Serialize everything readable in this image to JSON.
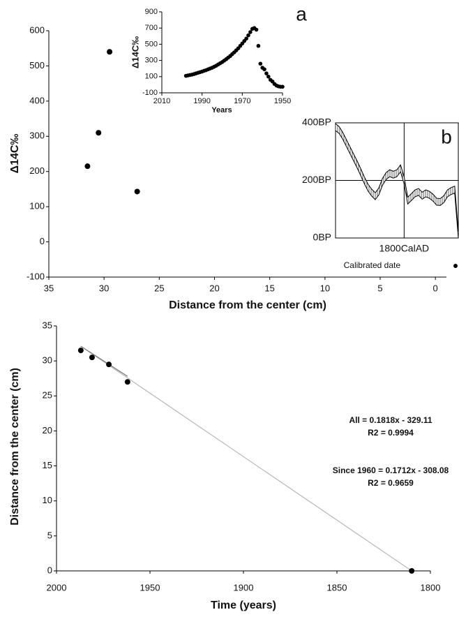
{
  "chart_data": [
    {
      "type": "scatter",
      "x_label": "Distance from the center (cm)",
      "y_label": "Δ14C‰",
      "x": [
        31.5,
        30.5,
        29.5,
        27
      ],
      "values": [
        215,
        310,
        540,
        143
      ],
      "color": "#000000",
      "xlim": [
        35,
        -1
      ],
      "xticks": [
        35,
        30,
        25,
        20,
        15,
        10,
        5,
        0
      ],
      "ylim": [
        -100,
        600
      ],
      "yticks": [
        -100,
        0,
        100,
        200,
        300,
        400,
        500,
        600
      ]
    },
    {
      "type": "scatter",
      "x_label": "Years",
      "y_label": "Δ14C‰",
      "annotations": [
        "a"
      ],
      "x": [
        1998,
        1997,
        1996,
        1995,
        1994,
        1993,
        1992,
        1991,
        1990,
        1989,
        1988,
        1987,
        1986,
        1985,
        1984,
        1983,
        1982,
        1981,
        1980,
        1979,
        1978,
        1977,
        1976,
        1975,
        1974,
        1973,
        1972,
        1971,
        1970,
        1969,
        1968,
        1967,
        1966,
        1965,
        1964,
        1963,
        1962,
        1961,
        1960,
        1959,
        1958,
        1957,
        1956,
        1955,
        1954,
        1953,
        1952,
        1951,
        1950
      ],
      "values": [
        110,
        115,
        120,
        125,
        132,
        140,
        148,
        155,
        163,
        172,
        180,
        190,
        200,
        210,
        222,
        235,
        250,
        265,
        280,
        298,
        315,
        335,
        355,
        378,
        400,
        425,
        450,
        480,
        510,
        540,
        570,
        610,
        650,
        690,
        700,
        680,
        480,
        260,
        210,
        190,
        140,
        100,
        60,
        40,
        10,
        -10,
        -20,
        -25,
        -25
      ],
      "color": "#000000",
      "xlim": [
        2010,
        1950
      ],
      "xticks": [
        2010,
        1990,
        1970,
        1950
      ],
      "ylim": [
        -100,
        900
      ],
      "yticks": [
        -100,
        100,
        300,
        500,
        700,
        900
      ]
    },
    {
      "type": "band",
      "annotations": [
        "b"
      ],
      "legend": [
        "Calibrated date"
      ],
      "grid": true,
      "x": [
        1610,
        1620,
        1630,
        1640,
        1650,
        1660,
        1670,
        1680,
        1690,
        1700,
        1710,
        1720,
        1730,
        1740,
        1750,
        1760,
        1770,
        1780,
        1790,
        1800,
        1810,
        1820,
        1830,
        1840,
        1850,
        1860,
        1870,
        1880,
        1890,
        1900,
        1910,
        1920,
        1930,
        1940,
        1950
      ],
      "high": [
        397,
        387,
        367,
        342,
        317,
        292,
        267,
        240,
        212,
        187,
        170,
        157,
        174,
        207,
        227,
        237,
        232,
        237,
        254,
        212,
        142,
        154,
        167,
        172,
        159,
        167,
        162,
        152,
        138,
        137,
        147,
        167,
        175,
        180,
        22
      ],
      "low": [
        373,
        363,
        343,
        318,
        293,
        268,
        243,
        216,
        188,
        163,
        146,
        133,
        150,
        183,
        203,
        213,
        208,
        213,
        230,
        188,
        118,
        130,
        143,
        148,
        135,
        143,
        138,
        128,
        114,
        113,
        123,
        143,
        151,
        156,
        0
      ],
      "xlim": [
        1610,
        1950
      ],
      "xticks": [
        {
          "value": 1800,
          "label": "1800CalAD"
        }
      ],
      "ylim": [
        0,
        400
      ],
      "yticks": [
        {
          "value": 0,
          "label": "0BP"
        },
        {
          "value": 200,
          "label": "200BP"
        },
        {
          "value": 400,
          "label": "400BP"
        }
      ]
    },
    {
      "type": "scatter",
      "x_label": "Time (years)",
      "y_label": "Distance from the center (cm)",
      "annotations": [
        "All = 0.1818x - 329.11",
        "R2 = 0.9994",
        "Since 1960 = 0.1712x - 308.08",
        "R2 = 0.9659"
      ],
      "x": [
        1987,
        1981,
        1972,
        1962,
        1810
      ],
      "values": [
        31.5,
        30.5,
        29.5,
        27,
        0
      ],
      "color": "#000000",
      "trendlines": [
        {
          "x": [
            1987,
            1810
          ],
          "values": [
            32.1,
            0
          ],
          "color": "#b8b8b8"
        },
        {
          "x": [
            1987,
            1962
          ],
          "values": [
            32.1,
            27.8
          ],
          "color": "#777777"
        }
      ],
      "xlim": [
        2000,
        1800
      ],
      "xticks": [
        2000,
        1950,
        1900,
        1850,
        1800
      ],
      "ylim": [
        0,
        35
      ],
      "yticks": [
        0,
        5,
        10,
        15,
        20,
        25,
        30,
        35
      ]
    }
  ]
}
